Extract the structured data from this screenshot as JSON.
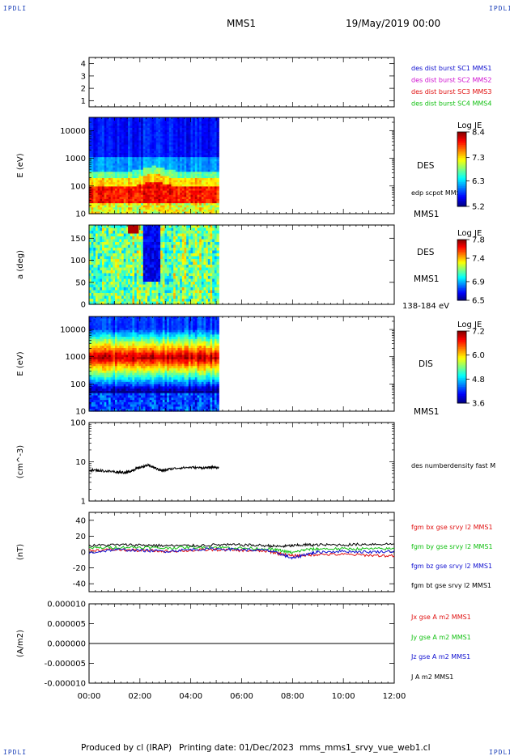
{
  "header": {
    "corner_label": "IPDLI",
    "mission": "MMS1",
    "datetime": "19/May/2019 00:00"
  },
  "footer": {
    "produced_by": "Produced by cl (IRAP)",
    "printing_date": "Printing date: 01/Dec/2023",
    "file_name": "mms_mms1_srvy_vue_web1.cl"
  },
  "time_axis": {
    "ticks": [
      "00:00",
      "02:00",
      "04:00",
      "06:00",
      "08:00",
      "10:00",
      "12:00"
    ],
    "range_hours": [
      0,
      12
    ]
  },
  "colors": {
    "mms1": "#1010d0",
    "mms2": "#d010d0",
    "mms3": "#e01010",
    "mms4": "#10c010",
    "bx": "#e01010",
    "by": "#10c010",
    "bz": "#1010d0",
    "bt": "#000000"
  },
  "chart_data": [
    {
      "id": "availability",
      "type": "scatter",
      "ylim": [
        0.5,
        4.5
      ],
      "yticks": [
        "4",
        "3",
        "2",
        "1"
      ],
      "ylabel": "",
      "series": [
        {
          "name": "des dist burst SC1 MMS1",
          "color": "#1010d0",
          "values": []
        },
        {
          "name": "des dist burst SC2 MMS2",
          "color": "#d010d0",
          "values": []
        },
        {
          "name": "des dist burst SC3 MMS3",
          "color": "#e01010",
          "values": []
        },
        {
          "name": "des dist burst SC4 MMS4",
          "color": "#10c010",
          "values": []
        }
      ]
    },
    {
      "id": "des-energy",
      "type": "heatmap",
      "ylabel": "E (eV)",
      "yscale": "log",
      "ylim": [
        10,
        30000
      ],
      "yticks": [
        "10000",
        "1000",
        "100",
        "10"
      ],
      "x_range_hours": [
        0,
        5.1
      ],
      "instrument": "DES",
      "extra_label": "edp scpot MMS1",
      "right_label": "MMS1",
      "colorbar": {
        "title": "Log JE",
        "min": 5.2,
        "max": 8.4,
        "ticks": [
          "8.4",
          "7.3",
          "6.3",
          "5.2"
        ]
      },
      "peak_energy_ev": 30
    },
    {
      "id": "des-pitch",
      "type": "heatmap",
      "ylabel": "a (deg)",
      "ylim": [
        0,
        180
      ],
      "yticks": [
        "150",
        "100",
        "50",
        "0"
      ],
      "x_range_hours": [
        0,
        5.1
      ],
      "instrument": "DES",
      "right_label": "MMS1",
      "energy_range": "138-184 eV",
      "colorbar": {
        "title": "Log JE",
        "min": 6.5,
        "max": 7.8,
        "ticks": [
          "7.8",
          "7.4",
          "6.9",
          "6.5"
        ]
      }
    },
    {
      "id": "dis-energy",
      "type": "heatmap",
      "ylabel": "E (eV)",
      "yscale": "log",
      "ylim": [
        10,
        30000
      ],
      "yticks": [
        "10000",
        "1000",
        "100",
        "10"
      ],
      "x_range_hours": [
        0,
        5.1
      ],
      "instrument": "DIS",
      "right_label": "MMS1",
      "colorbar": {
        "title": "Log JE",
        "min": 3.6,
        "max": 7.2,
        "ticks": [
          "7.2",
          "6.0",
          "4.8",
          "3.6"
        ]
      },
      "peak_energy_ev": 600
    },
    {
      "id": "density",
      "type": "line",
      "ylabel": "(cm^-3)",
      "yscale": "log",
      "ylim": [
        1,
        100
      ],
      "yticks": [
        "100",
        "10",
        "1"
      ],
      "series": [
        {
          "name": "des numberdensity fast M",
          "color": "#000000",
          "x": [
            0.0,
            0.4,
            0.8,
            1.2,
            1.5,
            1.7,
            1.9,
            2.1,
            2.3,
            2.5,
            2.7,
            2.9,
            3.2,
            3.6,
            4.0,
            4.4,
            4.7,
            4.9,
            5.1
          ],
          "y": [
            6.2,
            6.0,
            5.7,
            5.5,
            5.3,
            6.1,
            6.8,
            7.5,
            8.2,
            7.4,
            6.5,
            5.9,
            6.6,
            7.0,
            7.2,
            7.0,
            7.1,
            7.3,
            7.0
          ]
        }
      ]
    },
    {
      "id": "magnetic-field",
      "type": "line",
      "ylabel": "(nT)",
      "ylim": [
        -50,
        50
      ],
      "yticks": [
        "40",
        "20",
        "0",
        "-20",
        "-40"
      ],
      "series": [
        {
          "name": "fgm bx gse srvy l2 MMS1",
          "color": "#e01010",
          "x": [
            0,
            1,
            2,
            3,
            4,
            5,
            6,
            7,
            7.5,
            8,
            8.5,
            9,
            10,
            11,
            12
          ],
          "y": [
            2,
            3,
            2,
            1,
            2,
            3,
            2,
            1,
            -2,
            -5,
            -4,
            -3,
            -3,
            -4,
            -5
          ]
        },
        {
          "name": "fgm by gse srvy l2 MMS1",
          "color": "#10c010",
          "x": [
            0,
            1,
            2,
            3,
            4,
            5,
            6,
            7,
            7.5,
            8,
            8.5,
            9,
            10,
            11,
            12
          ],
          "y": [
            5,
            6,
            6,
            5,
            6,
            6,
            5,
            4,
            2,
            -1,
            3,
            4,
            4,
            4,
            4
          ]
        },
        {
          "name": "fgm bz gse srvy l2 MMS1",
          "color": "#1010d0",
          "x": [
            0,
            1,
            2,
            3,
            4,
            5,
            6,
            7,
            7.5,
            8,
            8.5,
            9,
            10,
            11,
            12
          ],
          "y": [
            -1,
            3,
            2,
            1,
            3,
            4,
            3,
            2,
            -2,
            -8,
            -3,
            0,
            1,
            0,
            1
          ]
        },
        {
          "name": "fgm bt gse srvy l2 MMS1",
          "color": "#000000",
          "x": [
            0,
            1,
            2,
            3,
            4,
            5,
            6,
            7,
            7.5,
            8,
            8.5,
            9,
            10,
            11,
            12
          ],
          "y": [
            8,
            9,
            9,
            8,
            8,
            9,
            9,
            8,
            7,
            8,
            9,
            9,
            9,
            10,
            10
          ]
        }
      ]
    },
    {
      "id": "current-density",
      "type": "line",
      "ylabel": "(A/m2)",
      "ylim": [
        -1e-05,
        1e-05
      ],
      "yticks": [
        "0.000010",
        "0.000005",
        "0.000000",
        "-0.000005",
        "-0.000010"
      ],
      "series": [
        {
          "name": "Jx gse A m2 MMS1",
          "color": "#e01010",
          "x": [
            0,
            12
          ],
          "y": [
            0,
            0
          ]
        },
        {
          "name": "Jy gse A m2 MMS1",
          "color": "#10c010",
          "x": [
            0,
            12
          ],
          "y": [
            0,
            0
          ]
        },
        {
          "name": "Jz gse A m2 MMS1",
          "color": "#1010d0",
          "x": [
            0,
            12
          ],
          "y": [
            0,
            0
          ]
        },
        {
          "name": "J A m2 MMS1",
          "color": "#000000",
          "x": [
            0,
            12
          ],
          "y": [
            0,
            0
          ]
        }
      ]
    }
  ]
}
